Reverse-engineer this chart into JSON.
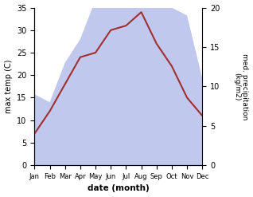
{
  "months": [
    "Jan",
    "Feb",
    "Mar",
    "Apr",
    "May",
    "Jun",
    "Jul",
    "Aug",
    "Sep",
    "Oct",
    "Nov",
    "Dec"
  ],
  "temperature": [
    7,
    12,
    18,
    24,
    25,
    30,
    31,
    34,
    27,
    22,
    15,
    11
  ],
  "precipitation": [
    9,
    8,
    13,
    16,
    21,
    33,
    35,
    33,
    21,
    20,
    19,
    11
  ],
  "temp_color": "#a03030",
  "precip_color_fill": "#c0c8ee",
  "temp_ylim": [
    0,
    35
  ],
  "precip_ylim": [
    0,
    35
  ],
  "right_yticks": [
    0,
    5,
    10,
    15,
    20
  ],
  "right_ytick_positions": [
    0,
    6.25,
    12.5,
    18.75,
    25
  ],
  "xlabel": "date (month)",
  "ylabel_left": "max temp (C)",
  "ylabel_right": "med. precipitation\n(kg/m2)",
  "background_color": "#ffffff",
  "left_yticks": [
    0,
    5,
    10,
    15,
    20,
    25,
    30,
    35
  ]
}
